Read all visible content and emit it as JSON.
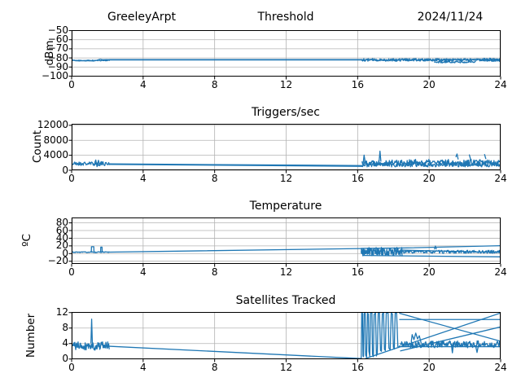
{
  "figure": {
    "line_color": "#1f77b4",
    "grid_color": "#b3b3b3",
    "spine_color": "#000000",
    "background": "#ffffff"
  },
  "chart_data": [
    {
      "id": "signal",
      "type": "line",
      "title_parts": {
        "left": "GreeleyArpt",
        "center": "Threshold",
        "right": "2024/11/24"
      },
      "ylabel": "dBm",
      "ylim": [
        -100.5,
        -49.5
      ],
      "yticks": [
        -50,
        -60,
        -70,
        -80,
        -90,
        -100
      ],
      "xlim": [
        0,
        24
      ],
      "xticks": [
        0,
        4,
        8,
        12,
        16,
        20,
        24
      ],
      "traces": [
        {
          "pts": [
            [
              0.02,
              -81.9
            ],
            [
              0.1,
              -82.5
            ],
            [
              0.2,
              -82.9
            ],
            [
              0.3,
              -83.1
            ],
            [
              0.45,
              -83.4
            ],
            [
              0.55,
              -82.9
            ],
            [
              0.65,
              -83.2
            ],
            [
              0.8,
              -83.4
            ],
            [
              0.9,
              -83.0
            ],
            [
              1.0,
              -83.3
            ],
            [
              1.1,
              -83.1
            ],
            [
              1.2,
              -83.5
            ],
            [
              1.3,
              -83.2
            ],
            [
              1.4,
              -82.7
            ],
            [
              1.5,
              -82.0
            ],
            [
              1.6,
              -81.5
            ],
            [
              1.7,
              -81.8
            ],
            [
              1.8,
              -82.0
            ],
            [
              1.95,
              -81.9
            ],
            [
              2.1,
              -82.0
            ]
          ]
        },
        {
          "noise": {
            "x0": 0.02,
            "x1": 2.1,
            "n": 60,
            "mean": -82.8,
            "amp": 0.5,
            "seed": 11
          }
        },
        {
          "pts": [
            [
              2.1,
              -81.9
            ],
            [
              16.25,
              -81.9
            ]
          ]
        },
        {
          "pts": [
            [
              2.1,
              -82.3
            ],
            [
              16.25,
              -82.2
            ]
          ]
        },
        {
          "noise": {
            "x0": 16.25,
            "x1": 24,
            "n": 240,
            "mean": -82.2,
            "amp": 1.5,
            "seed": 12
          }
        },
        {
          "noise": {
            "x0": 16.25,
            "x1": 24,
            "n": 240,
            "mean": -81.9,
            "amp": 1.0,
            "seed": 13
          }
        },
        {
          "noise": {
            "x0": 20.3,
            "x1": 22.6,
            "n": 70,
            "mean": -84.5,
            "amp": 1.0,
            "seed": 14
          }
        },
        {
          "noise": {
            "x0": 22.9,
            "x1": 24,
            "n": 40,
            "mean": -82.0,
            "amp": 1.8,
            "seed": 15
          }
        }
      ]
    },
    {
      "id": "triggers",
      "type": "line",
      "title": "Triggers/sec",
      "ylabel": "Count",
      "ylim": [
        0,
        12400
      ],
      "yticks": [
        0,
        4000,
        8000,
        12000
      ],
      "xlim": [
        0,
        24
      ],
      "xticks": [
        0,
        4,
        8,
        12,
        16,
        20,
        24
      ],
      "traces": [
        {
          "noise": {
            "x0": 0.02,
            "x1": 2.1,
            "n": 80,
            "mean": 1750,
            "amp": 520,
            "seed": 21
          }
        },
        {
          "pts": [
            [
              1.3,
              2100
            ],
            [
              1.35,
              2750
            ],
            [
              1.42,
              950
            ],
            [
              1.5,
              2650
            ],
            [
              1.58,
              1200
            ],
            [
              1.65,
              2300
            ]
          ]
        },
        {
          "pts": [
            [
              2.1,
              1550
            ],
            [
              16.25,
              1050
            ]
          ]
        },
        {
          "pts": [
            [
              2.1,
              1700
            ],
            [
              16.25,
              1250
            ]
          ]
        },
        {
          "noise": {
            "x0": 16.25,
            "x1": 24,
            "n": 250,
            "mean": 2050,
            "amp": 850,
            "seed": 22
          }
        },
        {
          "noise": {
            "x0": 16.25,
            "x1": 24,
            "n": 250,
            "mean": 1500,
            "amp": 600,
            "seed": 23
          }
        },
        {
          "pts": [
            [
              16.3,
              1500
            ],
            [
              16.36,
              4050
            ],
            [
              16.42,
              2300
            ]
          ]
        },
        {
          "pts": [
            [
              17.2,
              2400
            ],
            [
              17.25,
              5100
            ],
            [
              17.3,
              2400
            ]
          ]
        },
        {
          "pts": [
            [
              21.5,
              3600
            ],
            [
              21.56,
              4350
            ],
            [
              21.62,
              3000
            ]
          ]
        },
        {
          "pts": [
            [
              22.25,
              4100
            ],
            [
              22.32,
              2900
            ]
          ]
        },
        {
          "pts": [
            [
              23.1,
              4200
            ],
            [
              23.17,
              3100
            ]
          ]
        }
      ]
    },
    {
      "id": "temperature",
      "type": "line",
      "title": "Temperature",
      "ylabel": "ºC",
      "ylim": [
        -27,
        94
      ],
      "yticks": [
        -20,
        0,
        20,
        40,
        60,
        80
      ],
      "xlim": [
        0,
        24
      ],
      "xticks": [
        0,
        4,
        8,
        12,
        16,
        20,
        24
      ],
      "traces": [
        {
          "noise": {
            "x0": 0.02,
            "x1": 2.1,
            "n": 70,
            "mean": 3.6,
            "amp": 1.2,
            "seed": 31
          }
        },
        {
          "pts": [
            [
              1.1,
              3.5
            ],
            [
              1.11,
              17.8
            ],
            [
              1.24,
              17.8
            ],
            [
              1.25,
              3.5
            ]
          ]
        },
        {
          "pts": [
            [
              1.62,
              3.5
            ],
            [
              1.63,
              16.8
            ],
            [
              1.7,
              16.8
            ],
            [
              1.71,
              3.5
            ]
          ]
        },
        {
          "pts": [
            [
              2.1,
              3.8
            ],
            [
              16.2,
              13.0
            ]
          ]
        },
        {
          "noise": {
            "x0": 16.2,
            "x1": 18.5,
            "n": 150,
            "mean": 5,
            "amp": 11,
            "seed": 32
          }
        },
        {
          "pts": [
            [
              16.2,
              13.5
            ],
            [
              18.5,
              14.5
            ],
            [
              24,
              20.5
            ]
          ]
        },
        {
          "pts": [
            [
              16.3,
              -5
            ],
            [
              24,
              -8.5
            ]
          ]
        },
        {
          "noise": {
            "x0": 18.5,
            "x1": 24,
            "n": 170,
            "mean": 4.5,
            "amp": 4,
            "seed": 33
          }
        },
        {
          "pts": [
            [
              18.5,
              9
            ],
            [
              24,
              3
            ]
          ]
        },
        {
          "pts": [
            [
              20.3,
              12
            ],
            [
              20.35,
              19.5
            ],
            [
              20.4,
              12
            ]
          ]
        }
      ]
    },
    {
      "id": "satellites",
      "type": "line",
      "title": "Satellites Tracked",
      "ylabel": "Number",
      "ylim": [
        -0.05,
        12.15
      ],
      "yticks": [
        0,
        4,
        8,
        12
      ],
      "xlim": [
        0,
        24
      ],
      "xticks": [
        0,
        4,
        8,
        12,
        16,
        20,
        24
      ],
      "traces": [
        {
          "noise": {
            "x0": 0.02,
            "x1": 2.1,
            "n": 80,
            "mean": 3.4,
            "amp": 1.1,
            "seed": 41
          }
        },
        {
          "pts": [
            [
              1.08,
              4.2
            ],
            [
              1.12,
              10.3
            ],
            [
              1.16,
              4.0
            ]
          ]
        },
        {
          "pts": [
            [
              2.1,
              3.3
            ],
            [
              16.2,
              0.12
            ]
          ]
        },
        {
          "pts": [
            [
              16.2,
              0.3
            ],
            [
              16.23,
              11.9
            ],
            [
              16.27,
              11.8
            ],
            [
              16.3,
              0.8
            ],
            [
              16.33,
              0.6
            ],
            [
              16.36,
              11.7
            ],
            [
              16.42,
              12.0
            ],
            [
              16.45,
              1.0
            ],
            [
              16.5,
              0.5
            ],
            [
              16.55,
              11.9
            ],
            [
              16.6,
              11.6
            ],
            [
              16.63,
              2.0
            ],
            [
              16.68,
              0.7
            ],
            [
              16.72,
              11.8
            ],
            [
              16.8,
              12.0
            ],
            [
              16.83,
              1.2
            ],
            [
              16.88,
              0.6
            ],
            [
              16.92,
              11.5
            ],
            [
              17.0,
              11.9
            ],
            [
              17.05,
              0.8
            ],
            [
              17.1,
              1.5
            ],
            [
              17.15,
              11.8
            ],
            [
              17.22,
              12.0
            ],
            [
              17.28,
              2.2
            ],
            [
              17.33,
              2.0
            ],
            [
              17.38,
              11.7
            ],
            [
              17.45,
              11.9
            ],
            [
              17.5,
              2.5
            ],
            [
              17.55,
              2.2
            ],
            [
              17.6,
              11.8
            ],
            [
              17.7,
              12.0
            ],
            [
              17.75,
              2.8
            ],
            [
              17.82,
              2.4
            ],
            [
              17.88,
              11.9
            ],
            [
              17.95,
              11.6
            ],
            [
              18.0,
              3.0
            ],
            [
              18.05,
              2.6
            ],
            [
              18.1,
              11.8
            ],
            [
              18.18,
              11.9
            ],
            [
              18.25,
              3.2
            ],
            [
              18.3,
              3.0
            ],
            [
              18.35,
              3.4
            ]
          ]
        },
        {
          "pts": [
            [
              18.35,
              10.2
            ],
            [
              24,
              10.2
            ]
          ]
        },
        {
          "pts": [
            [
              18.35,
              11.8
            ],
            [
              24,
              4.6
            ]
          ]
        },
        {
          "pts": [
            [
              16.45,
              0.15
            ],
            [
              24,
              11.9
            ]
          ]
        },
        {
          "pts": [
            [
              18.4,
              2.1
            ],
            [
              24,
              8.3
            ]
          ]
        },
        {
          "pts": [
            [
              18.4,
              3.2
            ],
            [
              24,
              3.2
            ]
          ]
        },
        {
          "noise": {
            "x0": 18.4,
            "x1": 24,
            "n": 180,
            "mean": 3.8,
            "amp": 0.9,
            "seed": 42
          }
        },
        {
          "pts": [
            [
              19.0,
              4.5
            ],
            [
              19.05,
              6.3
            ],
            [
              19.15,
              5.0
            ],
            [
              19.25,
              6.7
            ],
            [
              19.35,
              5.2
            ],
            [
              19.45,
              6.0
            ],
            [
              19.55,
              4.2
            ]
          ]
        },
        {
          "pts": [
            [
              21.25,
              3.5
            ],
            [
              21.3,
              1.6
            ],
            [
              21.35,
              3.5
            ]
          ]
        },
        {
          "pts": [
            [
              22.6,
              3.4
            ],
            [
              22.68,
              1.7
            ],
            [
              22.75,
              3.4
            ]
          ]
        }
      ]
    }
  ]
}
